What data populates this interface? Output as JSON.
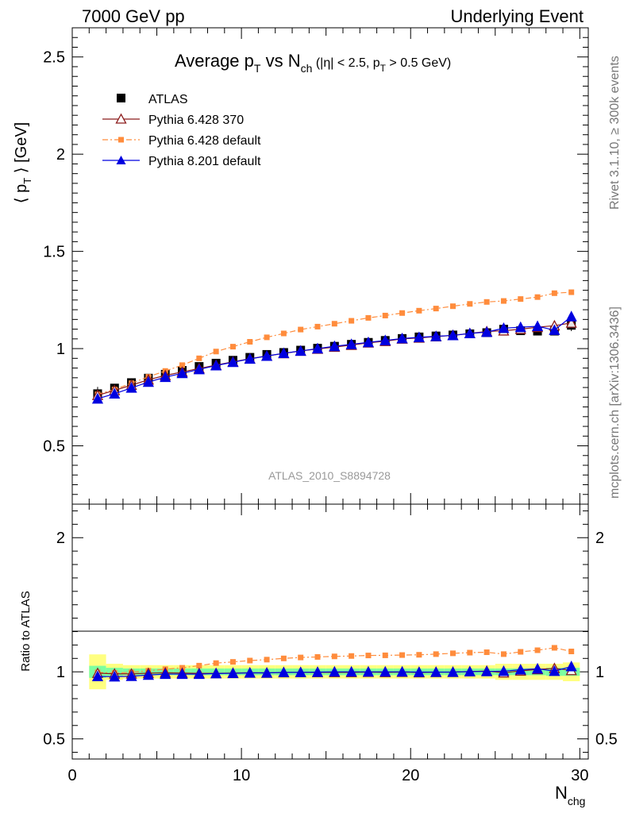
{
  "header": {
    "left": "7000 GeV pp",
    "right": "Underlying Event"
  },
  "side_labels": {
    "rivet": "Rivet 3.1.10, ≥ 300k events",
    "mcplots": "mcplots.cern.ch [arXiv:1306.3436]"
  },
  "title": {
    "main": "Average p",
    "main_sub": "T",
    "vs": " vs N",
    "vs_sub": "ch",
    "cut1": " (|η| < 2.5, p",
    "cut_sub": "T",
    "cut2": " > 0.5 GeV)"
  },
  "watermark": "ATLAS_2010_S8894728",
  "legend": [
    "ATLAS",
    "Pythia 6.428 370",
    "Pythia 6.428 default",
    "Pythia 8.201 default"
  ],
  "colors": {
    "atlas": "#000000",
    "p6_370": "#8b1a1a",
    "p6_default": "#ff8c3c",
    "p8_default": "#0000e0",
    "band_inner": "#7dffa0",
    "band_outer": "#ffff80"
  },
  "y_label_top": "⟨ p",
  "y_label_top_sub": "T",
  "y_label_top_end": " ⟩ [GeV]",
  "y_label_bottom": "Ratio to ATLAS",
  "x_label": "N",
  "x_label_sub": "chg",
  "chart_data": [
    {
      "type": "line",
      "panel": "main",
      "xlim": [
        0,
        30.5
      ],
      "ylim": [
        0.2,
        2.65
      ],
      "xticks": [
        "0",
        "10",
        "20",
        "30"
      ],
      "yticks": [
        "0.5",
        "1",
        "1.5",
        "2",
        "2.5"
      ],
      "x": [
        1.5,
        2.5,
        3.5,
        4.5,
        5.5,
        6.5,
        7.5,
        8.5,
        9.5,
        10.5,
        11.5,
        12.5,
        13.5,
        14.5,
        15.5,
        16.5,
        17.5,
        18.5,
        19.5,
        20.5,
        21.5,
        22.5,
        23.5,
        24.5,
        25.5,
        26.5,
        27.5,
        28.5,
        29.5
      ],
      "series": [
        {
          "name": "ATLAS",
          "marker": "square",
          "values": [
            0.768,
            0.797,
            0.825,
            0.848,
            0.868,
            0.888,
            0.908,
            0.925,
            0.94,
            0.955,
            0.97,
            0.98,
            0.992,
            1.002,
            1.012,
            1.022,
            1.032,
            1.042,
            1.052,
            1.06,
            1.065,
            1.07,
            1.076,
            1.082,
            1.1,
            1.092,
            1.09,
            1.09,
            1.12
          ],
          "yerr": [
            0.035,
            0.02,
            0.015,
            0.015,
            0.015,
            0.015,
            0.015,
            0.015,
            0.015,
            0.015,
            0.015,
            0.015,
            0.015,
            0.015,
            0.015,
            0.015,
            0.015,
            0.015,
            0.015,
            0.015,
            0.015,
            0.015,
            0.015,
            0.015,
            0.02,
            0.02,
            0.02,
            0.02,
            0.03
          ]
        },
        {
          "name": "Pythia 6.428 370",
          "marker": "triangle-open",
          "values": [
            0.76,
            0.785,
            0.812,
            0.84,
            0.862,
            0.88,
            0.898,
            0.915,
            0.932,
            0.948,
            0.962,
            0.975,
            0.988,
            0.998,
            1.008,
            1.018,
            1.03,
            1.038,
            1.05,
            1.055,
            1.062,
            1.068,
            1.078,
            1.088,
            1.092,
            1.1,
            1.11,
            1.118,
            1.132
          ]
        },
        {
          "name": "Pythia 6.428 default",
          "marker": "square-small",
          "values": [
            0.765,
            0.79,
            0.822,
            0.855,
            0.885,
            0.915,
            0.95,
            0.985,
            1.01,
            1.035,
            1.058,
            1.078,
            1.098,
            1.113,
            1.128,
            1.143,
            1.158,
            1.17,
            1.183,
            1.195,
            1.206,
            1.218,
            1.23,
            1.24,
            1.245,
            1.255,
            1.265,
            1.285,
            1.29
          ]
        },
        {
          "name": "Pythia 8.201 default",
          "marker": "triangle-filled",
          "values": [
            0.742,
            0.768,
            0.798,
            0.828,
            0.853,
            0.873,
            0.893,
            0.913,
            0.93,
            0.947,
            0.962,
            0.976,
            0.988,
            1.0,
            1.012,
            1.022,
            1.032,
            1.042,
            1.052,
            1.058,
            1.063,
            1.068,
            1.078,
            1.085,
            1.105,
            1.11,
            1.115,
            1.095,
            1.165
          ]
        }
      ]
    },
    {
      "type": "line",
      "panel": "ratio",
      "xlim": [
        0,
        30.5
      ],
      "ylim": [
        0.35,
        2.25
      ],
      "yticks": [
        "0.5",
        "1",
        "2"
      ],
      "x": [
        1.5,
        2.5,
        3.5,
        4.5,
        5.5,
        6.5,
        7.5,
        8.5,
        9.5,
        10.5,
        11.5,
        12.5,
        13.5,
        14.5,
        15.5,
        16.5,
        17.5,
        18.5,
        19.5,
        20.5,
        21.5,
        22.5,
        23.5,
        24.5,
        25.5,
        26.5,
        27.5,
        28.5,
        29.5
      ],
      "band_inner": [
        0.045,
        0.03,
        0.025,
        0.025,
        0.025,
        0.025,
        0.025,
        0.025,
        0.025,
        0.025,
        0.025,
        0.025,
        0.025,
        0.025,
        0.025,
        0.025,
        0.025,
        0.025,
        0.025,
        0.025,
        0.025,
        0.025,
        0.025,
        0.025,
        0.025,
        0.025,
        0.025,
        0.03,
        0.03
      ],
      "band_outer": [
        0.13,
        0.06,
        0.05,
        0.05,
        0.05,
        0.05,
        0.05,
        0.05,
        0.05,
        0.05,
        0.05,
        0.05,
        0.05,
        0.05,
        0.05,
        0.05,
        0.05,
        0.05,
        0.05,
        0.05,
        0.05,
        0.05,
        0.05,
        0.05,
        0.06,
        0.06,
        0.06,
        0.06,
        0.07
      ],
      "series": [
        {
          "name": "Pythia 6.428 370",
          "marker": "triangle-open",
          "values": [
            0.99,
            0.985,
            0.985,
            0.99,
            0.993,
            0.991,
            0.989,
            0.989,
            0.991,
            0.993,
            0.992,
            0.995,
            0.996,
            0.996,
            0.996,
            0.996,
            0.998,
            0.996,
            0.998,
            0.995,
            0.997,
            0.998,
            1.002,
            1.006,
            0.993,
            1.007,
            1.018,
            1.026,
            1.011
          ]
        },
        {
          "name": "Pythia 6.428 default",
          "marker": "square-small",
          "values": [
            0.996,
            0.991,
            0.996,
            1.008,
            1.02,
            1.03,
            1.046,
            1.065,
            1.074,
            1.084,
            1.091,
            1.1,
            1.107,
            1.111,
            1.115,
            1.118,
            1.122,
            1.123,
            1.125,
            1.127,
            1.132,
            1.138,
            1.143,
            1.146,
            1.132,
            1.149,
            1.161,
            1.179,
            1.152
          ]
        },
        {
          "name": "Pythia 8.201 default",
          "marker": "triangle-filled",
          "values": [
            0.966,
            0.964,
            0.967,
            0.976,
            0.983,
            0.983,
            0.983,
            0.987,
            0.989,
            0.992,
            0.992,
            0.996,
            0.996,
            0.998,
            1.0,
            1.0,
            1.0,
            1.0,
            1.0,
            0.998,
            0.998,
            0.998,
            1.002,
            1.003,
            1.005,
            1.016,
            1.023,
            1.005,
            1.04
          ]
        }
      ]
    }
  ]
}
